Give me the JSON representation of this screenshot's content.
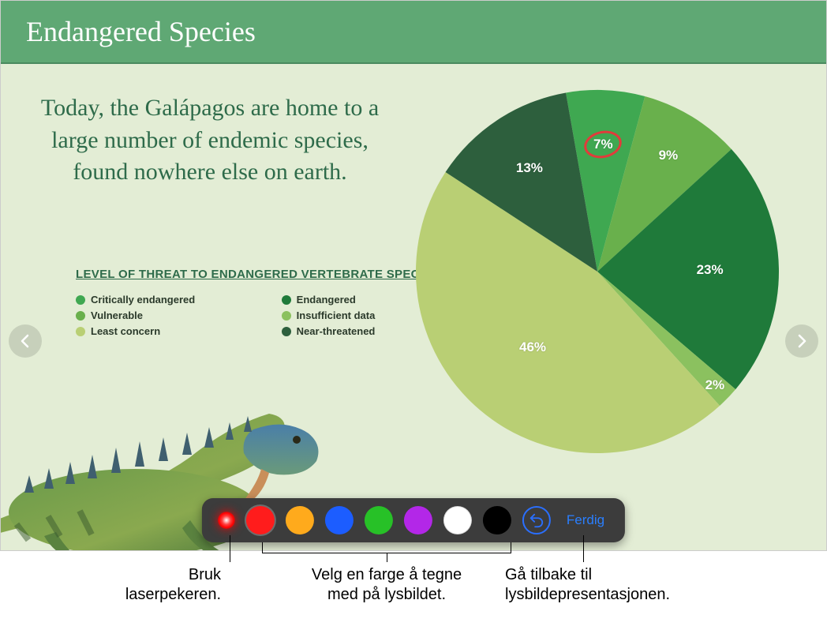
{
  "slide": {
    "title": "Endangered Species",
    "title_bg": "#5fa874",
    "body_bg": "#e3edd5",
    "quote": "Today, the Galápagos are home to a large number of endemic species, found nowhere else on earth.",
    "quote_color": "#2e6b4a",
    "quote_fontsize": 30
  },
  "legend": {
    "title": "LEVEL OF THREAT TO ENDANGERED VERTEBRATE SPECIES",
    "items": [
      {
        "label": "Critically endangered",
        "color": "#3fa851"
      },
      {
        "label": "Endangered",
        "color": "#1f7a3a"
      },
      {
        "label": "Vulnerable",
        "color": "#69b04c"
      },
      {
        "label": "Insufficient data",
        "color": "#8bc15f"
      },
      {
        "label": "Least concern",
        "color": "#b9cf74"
      },
      {
        "label": "Near-threatened",
        "color": "#2d5f3d"
      }
    ]
  },
  "pie": {
    "type": "pie",
    "start_angle_deg": -100,
    "slices": [
      {
        "value": 7,
        "label": "7%",
        "color": "#3fa851",
        "label_r": 0.7
      },
      {
        "value": 9,
        "label": "9%",
        "color": "#69b04c",
        "label_r": 0.75
      },
      {
        "value": 23,
        "label": "23%",
        "color": "#1f7a3a",
        "label_r": 0.62
      },
      {
        "value": 2,
        "label": "2%",
        "color": "#8bc15f",
        "label_r": 0.9
      },
      {
        "value": 46,
        "label": "46%",
        "color": "#b9cf74",
        "label_r": 0.55
      },
      {
        "value": 13,
        "label": "13%",
        "color": "#2d5f3d",
        "label_r": 0.68
      }
    ],
    "annotation_on_slice_index": 0,
    "label_color": "#ffffff",
    "label_fontsize": 17
  },
  "toolbar": {
    "bg": "#3c3c3c",
    "colors": [
      "#ff1c1c",
      "#ffaa1c",
      "#1c5dff",
      "#27c127",
      "#b327e8",
      "#ffffff",
      "#000000"
    ],
    "done_label": "Ferdig",
    "done_color": "#2a7fff"
  },
  "callouts": {
    "laser": "Bruk\nlaserpekeren.",
    "colors": "Velg en farge å tegne\nmed på lysbildet.",
    "done": "Gå tilbake til\nlysbildepresentasjonen."
  }
}
